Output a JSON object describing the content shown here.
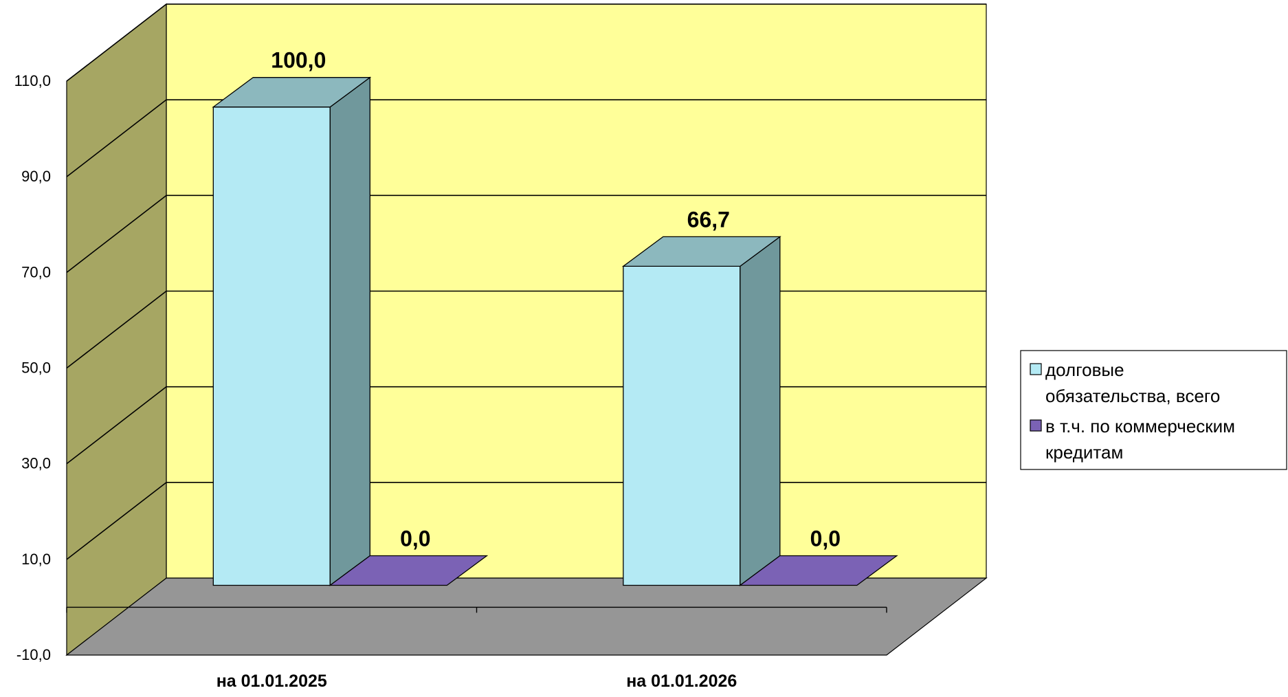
{
  "chart_data": {
    "type": "bar",
    "categories": [
      "на 01.01.2025",
      "на 01.01.2026"
    ],
    "series": [
      {
        "name": "долговые обязательства, всего",
        "values": [
          100.0,
          66.7
        ],
        "labels": [
          "100,0",
          "66,7"
        ]
      },
      {
        "name": "в т.ч. по коммерческим кредитам",
        "values": [
          0.0,
          0.0
        ],
        "labels": [
          "0,0",
          "0,0"
        ]
      }
    ],
    "ylim": [
      -10,
      110
    ],
    "yticks": [
      -10,
      10,
      30,
      50,
      70,
      90,
      110
    ],
    "ytick_labels": [
      "-10,0",
      "10,0",
      "30,0",
      "50,0",
      "70,0",
      "90,0",
      "110,0"
    ],
    "grid": true,
    "legend_position": "right",
    "legend": [
      {
        "lines": [
          "долговые",
          "обязательства, всего"
        ]
      },
      {
        "lines": [
          "в т.ч. по коммерческим",
          "кредитам"
        ]
      }
    ],
    "colors": {
      "series1_front": "#b4eaf4",
      "series1_top": "#8cb8be",
      "series1_side": "#70989c",
      "series2_front": "#7b62b5",
      "series2_top": "#7b62b5",
      "series2_side": "#5a4690",
      "back_wall": "#ffff99",
      "side_wall": "#a6a663",
      "floor": "#969696"
    }
  }
}
